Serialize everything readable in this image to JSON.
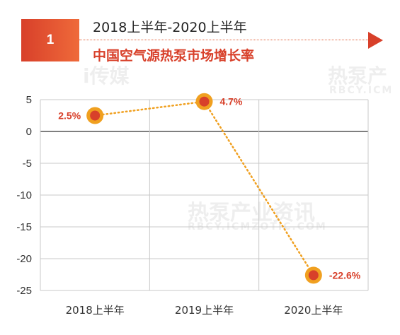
{
  "header": {
    "badge_number": "1",
    "title": "2018上半年-2020上半年",
    "subtitle": "中国空气源热泵市场增长率"
  },
  "watermarks": {
    "left": "i传媒",
    "right": "热泵产",
    "right_sub": "RBCY.ICM",
    "center": "热泵产业资讯",
    "center_sub": "RBCY.ICMZOTIC.COM"
  },
  "colors": {
    "accent": "#d8402a",
    "marker_ring": "#f0a020",
    "line": "#f0a020",
    "grid": "#c8c8c8",
    "zero_line": "#555555"
  },
  "chart_data": {
    "type": "line",
    "categories": [
      "2018上半年",
      "2019上半年",
      "2020上半年"
    ],
    "values": [
      2.5,
      4.7,
      -22.6
    ],
    "data_labels": [
      "2.5%",
      "4.7%",
      "-22.6%"
    ],
    "ylim": [
      -25,
      5
    ],
    "yticks": [
      5,
      0,
      -5,
      -10,
      -15,
      -20,
      -25
    ],
    "grid": true,
    "line_style": "dotted"
  }
}
